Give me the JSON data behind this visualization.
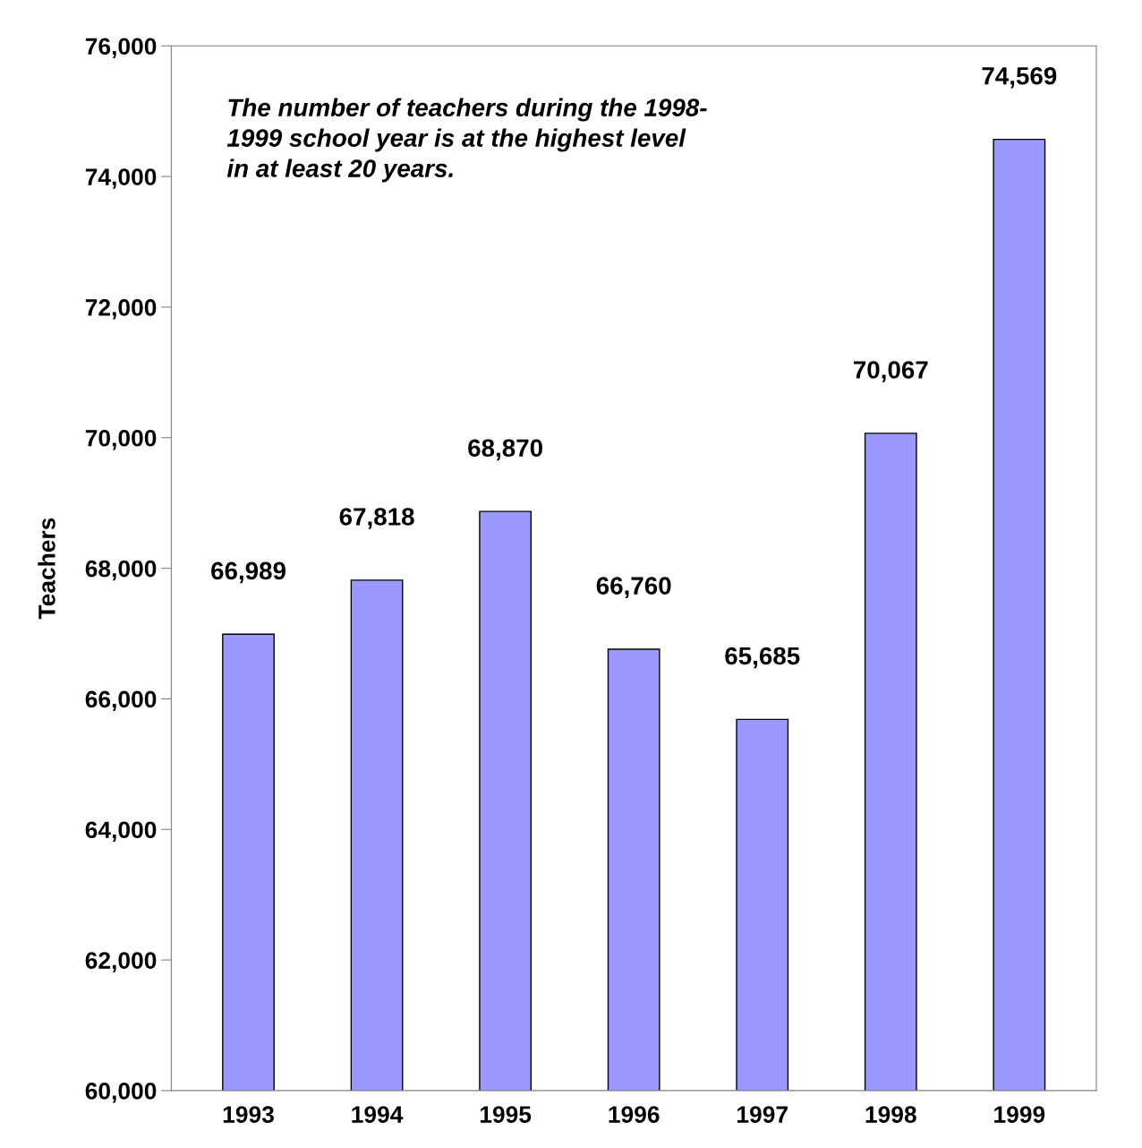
{
  "chart_data": {
    "type": "bar",
    "ylabel": "Teachers",
    "categories": [
      "1993",
      "1994",
      "1995",
      "1996",
      "1997",
      "1998",
      "1999"
    ],
    "values": [
      66989,
      67818,
      68870,
      66760,
      65685,
      70067,
      74569
    ],
    "color": "#9999ff",
    "value_labels": [
      "66,989",
      "67,818",
      "68,870",
      "66,760",
      "65,685",
      "70,067",
      "74,569"
    ],
    "ylim": [
      60000,
      76000
    ],
    "yticks": [
      {
        "value": 60000,
        "label": "60,000"
      },
      {
        "value": 62000,
        "label": "62,000"
      },
      {
        "value": 64000,
        "label": "64,000"
      },
      {
        "value": 66000,
        "label": "66,000"
      },
      {
        "value": 68000,
        "label": "68,000"
      },
      {
        "value": 70000,
        "label": "70,000"
      },
      {
        "value": 72000,
        "label": "72,000"
      },
      {
        "value": 74000,
        "label": "74,000"
      },
      {
        "value": 76000,
        "label": "76,000"
      }
    ],
    "grid": false,
    "legend": false,
    "annotations": [
      "The number of teachers during the 1998-\n1999 school year is at the highest level\nin at least 20 years."
    ]
  }
}
